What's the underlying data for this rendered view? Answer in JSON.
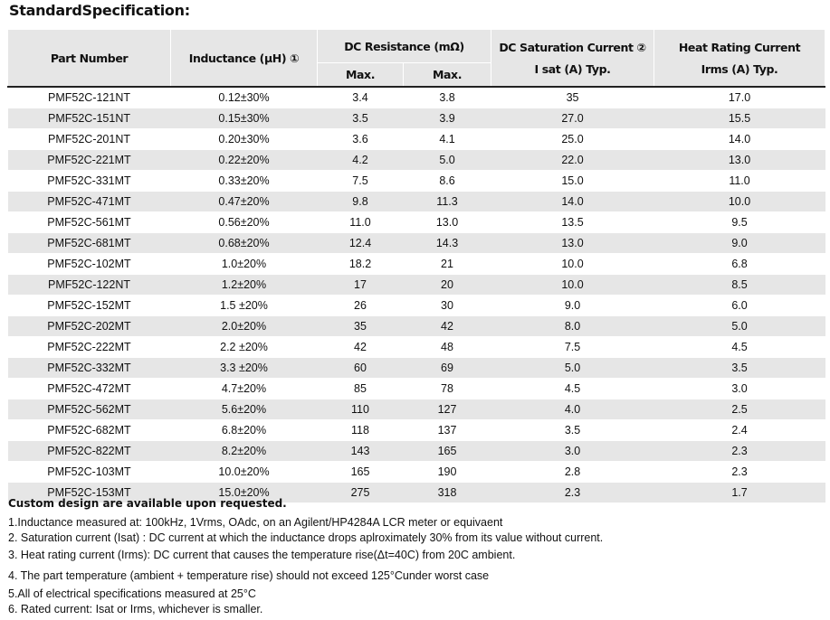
{
  "title": "StandardSpecification:",
  "headers": {
    "part": "Part Number",
    "inductance": "Inductance (µH) ①",
    "dcr": "DC Resistance (mΩ)",
    "dcr_max1": "Max.",
    "dcr_max2": "Max.",
    "isat1": "DC Saturation Current ②",
    "isat2": "I sat (A) Typ.",
    "irms1": "Heat Rating Current",
    "irms2": "Irms (A) Typ."
  },
  "rows": [
    [
      "PMF52C-121NT",
      "0.12±30%",
      "3.4",
      "3.8",
      "35",
      "17.0"
    ],
    [
      "PMF52C-151NT",
      "0.15±30%",
      "3.5",
      "3.9",
      "27.0",
      "15.5"
    ],
    [
      "PMF52C-201NT",
      "0.20±30%",
      "3.6",
      "4.1",
      "25.0",
      "14.0"
    ],
    [
      "PMF52C-221MT",
      "0.22±20%",
      "4.2",
      "5.0",
      "22.0",
      "13.0"
    ],
    [
      "PMF52C-331MT",
      "0.33±20%",
      "7.5",
      "8.6",
      "15.0",
      "11.0"
    ],
    [
      "PMF52C-471MT",
      "0.47±20%",
      "9.8",
      "11.3",
      "14.0",
      "10.0"
    ],
    [
      "PMF52C-561MT",
      "0.56±20%",
      "11.0",
      "13.0",
      "13.5",
      "9.5"
    ],
    [
      "PMF52C-681MT",
      "0.68±20%",
      "12.4",
      "14.3",
      "13.0",
      "9.0"
    ],
    [
      "PMF52C-102MT",
      "1.0±20%",
      "18.2",
      "21",
      "10.0",
      "6.8"
    ],
    [
      "PMF52C-122NT",
      "1.2±20%",
      "17",
      "20",
      "10.0",
      "8.5"
    ],
    [
      "PMF52C-152MT",
      "1.5 ±20%",
      "26",
      "30",
      "9.0",
      "6.0"
    ],
    [
      "PMF52C-202MT",
      "2.0±20%",
      "35",
      "42",
      "8.0",
      "5.0"
    ],
    [
      "PMF52C-222MT",
      "2.2 ±20%",
      "42",
      "48",
      "7.5",
      "4.5"
    ],
    [
      "PMF52C-332MT",
      "3.3 ±20%",
      "60",
      "69",
      "5.0",
      "3.5"
    ],
    [
      "PMF52C-472MT",
      "4.7±20%",
      "85",
      "78",
      "4.5",
      "3.0"
    ],
    [
      "PMF52C-562MT",
      "5.6±20%",
      "110",
      "127",
      "4.0",
      "2.5"
    ],
    [
      "PMF52C-682MT",
      "6.8±20%",
      "118",
      "137",
      "3.5",
      "2.4"
    ],
    [
      "PMF52C-822MT",
      "8.2±20%",
      "143",
      "165",
      "3.0",
      "2.3"
    ],
    [
      "PMF52C-103MT",
      "10.0±20%",
      "165",
      "190",
      "2.8",
      "2.3"
    ],
    [
      "PMF52C-153MT",
      "15.0±20%",
      "275",
      "318",
      "2.3",
      "1.7"
    ]
  ],
  "notes": {
    "heading": "Custom design are available upon requested.",
    "items": [
      "1.Inductance measured at: 100kHz, 1Vrms, OAdc, on an Agilent/HP4284A LCR meter or equivaent",
      "2. Saturation current (Isat) : DC current at which the inductance drops aplroximately 30% from its value without current.",
      "3. Heat rating current (Irms): DC current that causes the temperature rise(Δt=40C) from 20C ambient.",
      "4. The part temperature (ambient + temperature rise) should not exceed 125°Cunder worst case",
      "5.All of electrical specifications measured at 25°C",
      "6. Rated current: Isat or Irms, whichever is smaller."
    ]
  }
}
